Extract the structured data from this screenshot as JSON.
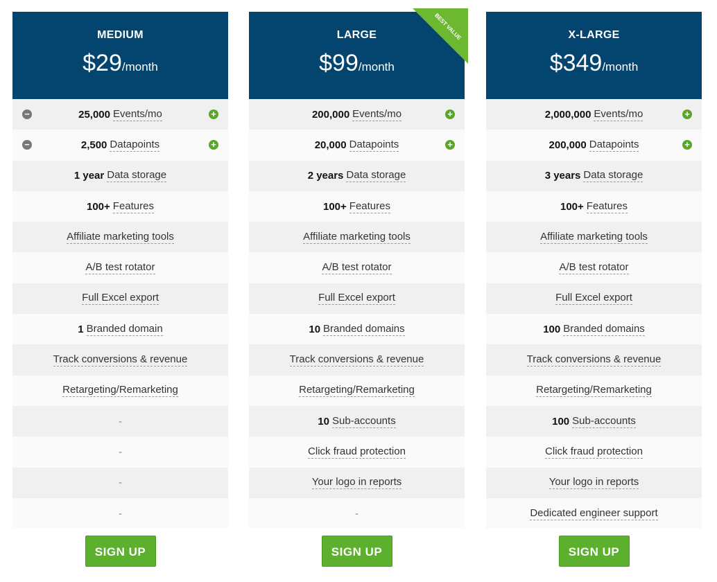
{
  "colors": {
    "header": "#03456e",
    "accent": "#5cb02d"
  },
  "plans": [
    {
      "name": "MEDIUM",
      "price": "$29",
      "period": "/month",
      "signup": "SIGN UP",
      "ribbon": null,
      "stepper": true,
      "rows": [
        {
          "b": "25,000",
          "t": "Events/mo"
        },
        {
          "b": "2,500",
          "t": "Datapoints"
        },
        {
          "b": "1 year",
          "t": "Data storage"
        },
        {
          "b": "100+",
          "t": "Features"
        },
        {
          "b": "",
          "t": "Affiliate marketing tools"
        },
        {
          "b": "",
          "t": "A/B test rotator"
        },
        {
          "b": "",
          "t": "Full Excel export"
        },
        {
          "b": "1",
          "t": "Branded domain"
        },
        {
          "b": "",
          "t": "Track conversions & revenue"
        },
        {
          "b": "",
          "t": "Retargeting/Remarketing"
        },
        {
          "b": "",
          "t": "-"
        },
        {
          "b": "",
          "t": "-"
        },
        {
          "b": "",
          "t": "-"
        },
        {
          "b": "",
          "t": "-"
        }
      ]
    },
    {
      "name": "LARGE",
      "price": "$99",
      "period": "/month",
      "signup": "SIGN UP",
      "ribbon": "BEST VALUE",
      "stepper": false,
      "rows": [
        {
          "b": "200,000",
          "t": "Events/mo"
        },
        {
          "b": "20,000",
          "t": "Datapoints"
        },
        {
          "b": "2 years",
          "t": "Data storage"
        },
        {
          "b": "100+",
          "t": "Features"
        },
        {
          "b": "",
          "t": "Affiliate marketing tools"
        },
        {
          "b": "",
          "t": "A/B test rotator"
        },
        {
          "b": "",
          "t": "Full Excel export"
        },
        {
          "b": "10",
          "t": "Branded domains"
        },
        {
          "b": "",
          "t": "Track conversions & revenue"
        },
        {
          "b": "",
          "t": "Retargeting/Remarketing"
        },
        {
          "b": "10",
          "t": "Sub-accounts"
        },
        {
          "b": "",
          "t": "Click fraud protection"
        },
        {
          "b": "",
          "t": "Your logo in reports"
        },
        {
          "b": "",
          "t": "-"
        }
      ]
    },
    {
      "name": "X-LARGE",
      "price": "$349",
      "period": "/month",
      "signup": "SIGN UP",
      "ribbon": null,
      "stepper": false,
      "rows": [
        {
          "b": "2,000,000",
          "t": "Events/mo"
        },
        {
          "b": "200,000",
          "t": "Datapoints"
        },
        {
          "b": "3 years",
          "t": "Data storage"
        },
        {
          "b": "100+",
          "t": "Features"
        },
        {
          "b": "",
          "t": "Affiliate marketing tools"
        },
        {
          "b": "",
          "t": "A/B test rotator"
        },
        {
          "b": "",
          "t": "Full Excel export"
        },
        {
          "b": "100",
          "t": "Branded domains"
        },
        {
          "b": "",
          "t": "Track conversions & revenue"
        },
        {
          "b": "",
          "t": "Retargeting/Remarketing"
        },
        {
          "b": "100",
          "t": "Sub-accounts"
        },
        {
          "b": "",
          "t": "Click fraud protection"
        },
        {
          "b": "",
          "t": "Your logo in reports"
        },
        {
          "b": "",
          "t": "Dedicated engineer support"
        }
      ]
    }
  ]
}
